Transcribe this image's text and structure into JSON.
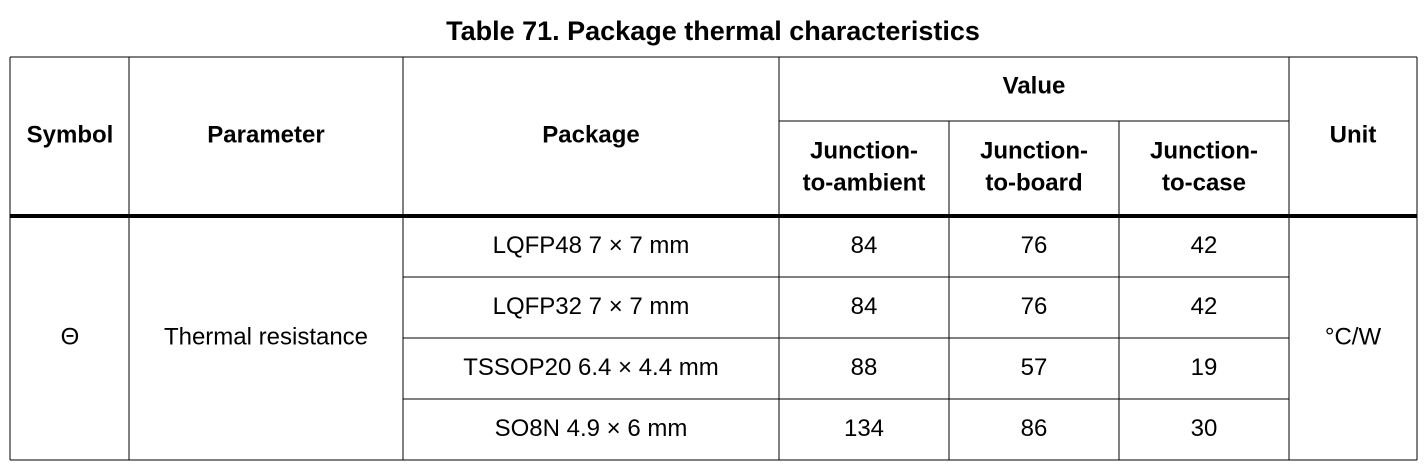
{
  "title": "Table 71. Package thermal characteristics",
  "table": {
    "header": {
      "symbol": "Symbol",
      "parameter": "Parameter",
      "package": "Package",
      "value": "Value",
      "value_columns": [
        [
          "Junction-",
          "to-ambient"
        ],
        [
          "Junction-",
          "to-board"
        ],
        [
          "Junction-",
          "to-case"
        ]
      ],
      "unit": "Unit"
    },
    "symbol": "Θ",
    "parameter": "Thermal resistance",
    "unit": "°C/W",
    "rows": [
      [
        "LQFP48 7 × 7 mm",
        84,
        76,
        42
      ],
      [
        "LQFP32 7 × 7 mm",
        84,
        76,
        42
      ],
      [
        "TSSOP20 6.4 × 4.4 mm",
        88,
        57,
        19
      ],
      [
        "SO8N 4.9 × 6 mm",
        134,
        86,
        30
      ]
    ]
  }
}
